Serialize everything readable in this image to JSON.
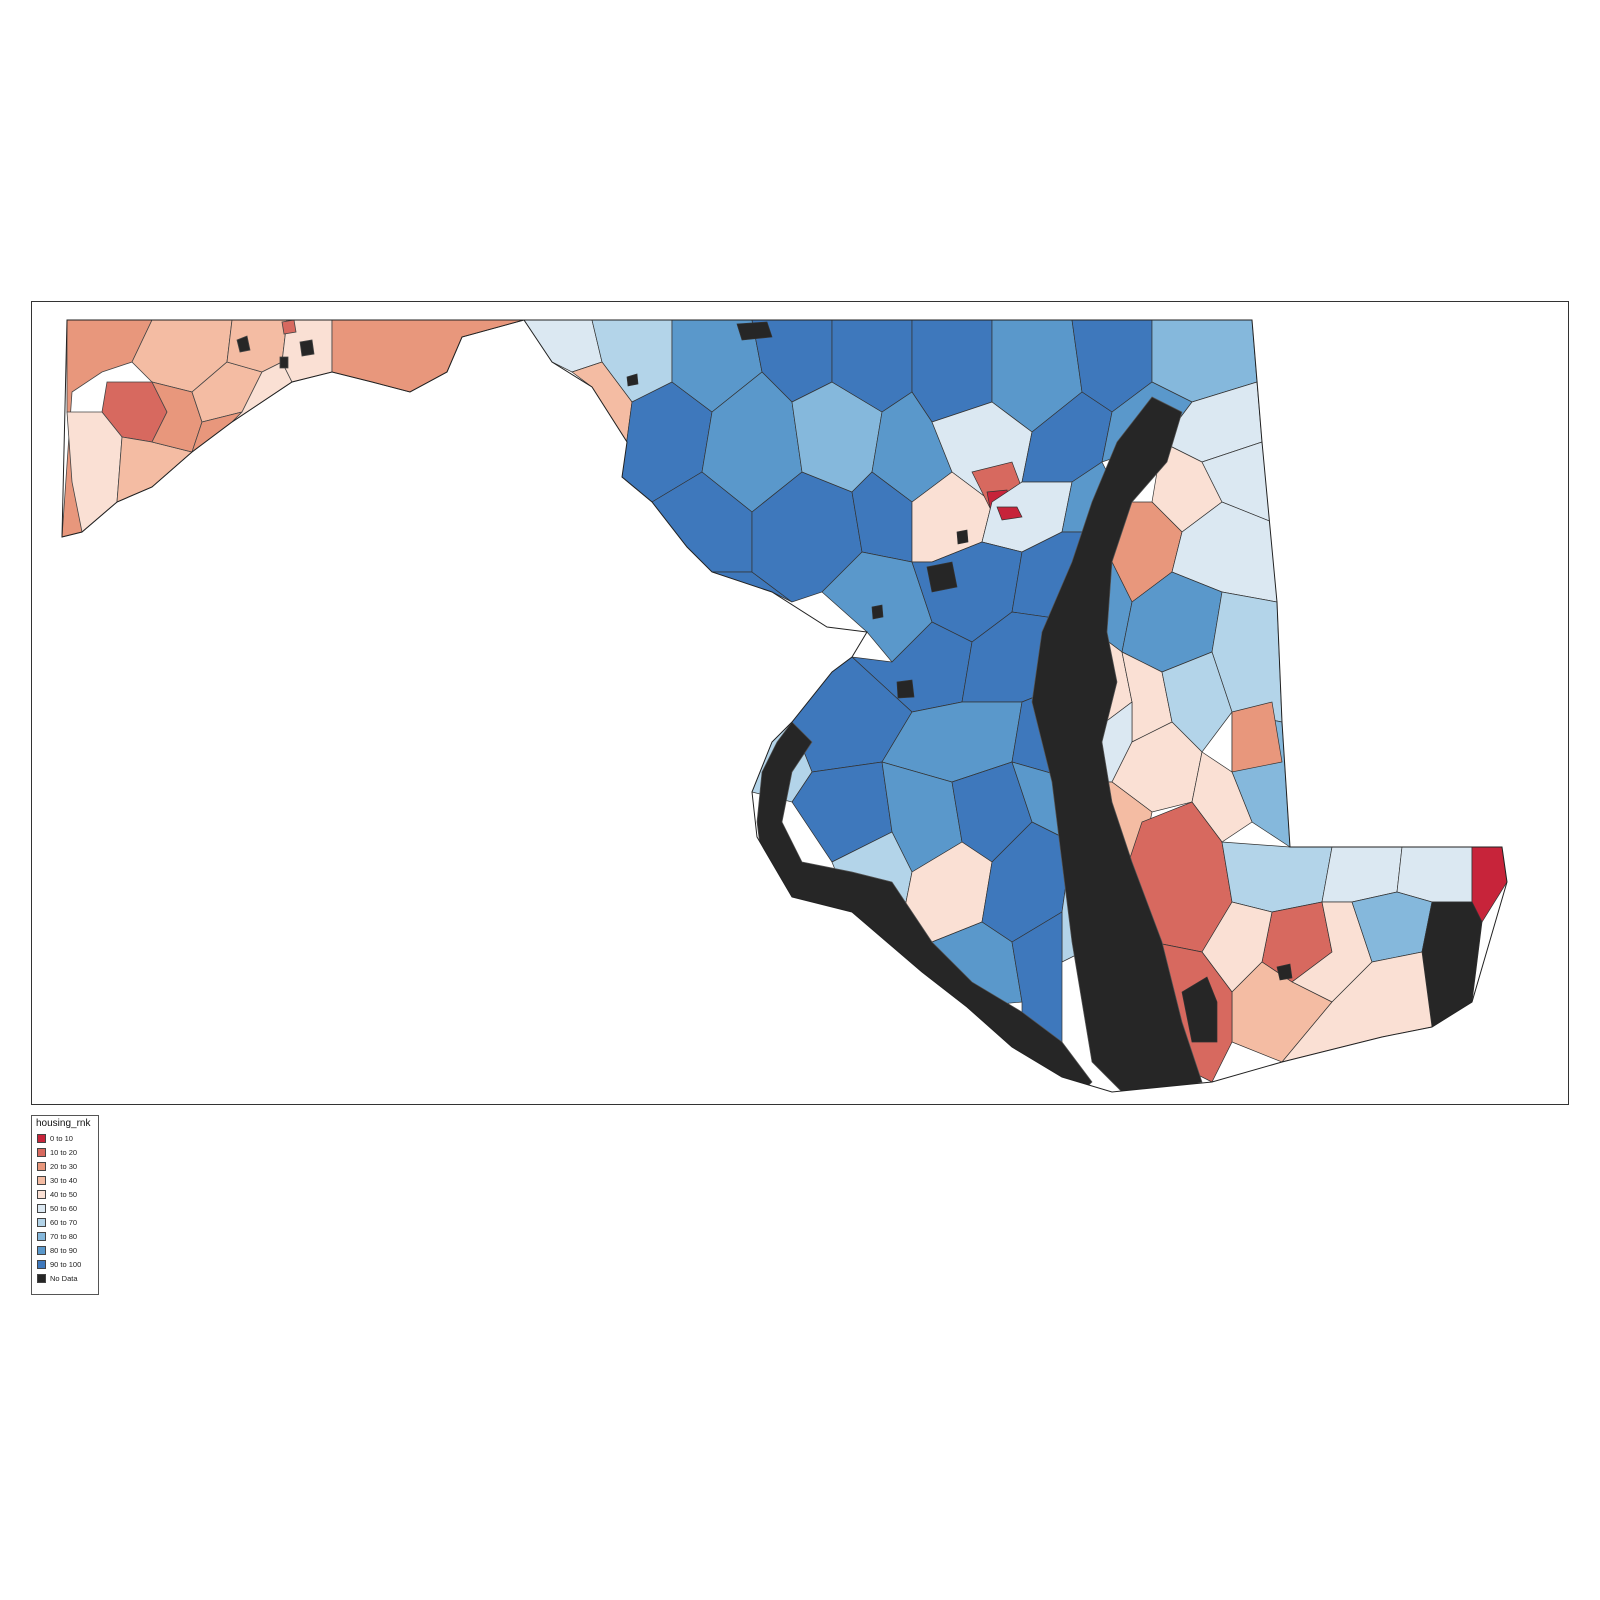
{
  "map": {
    "legend_title": "housing_rnk",
    "classes": [
      {
        "label": "0 to 10",
        "color": "#c7243a"
      },
      {
        "label": "10 to 20",
        "color": "#d7695f"
      },
      {
        "label": "20 to 30",
        "color": "#e8977c"
      },
      {
        "label": "30 to 40",
        "color": "#f4bca3"
      },
      {
        "label": "40 to 50",
        "color": "#fae0d4"
      },
      {
        "label": "50 to 60",
        "color": "#dbe8f2"
      },
      {
        "label": "60 to 70",
        "color": "#b3d4e9"
      },
      {
        "label": "70 to 80",
        "color": "#85b8dc"
      },
      {
        "label": "80 to 90",
        "color": "#5a98cb"
      },
      {
        "label": "90 to 100",
        "color": "#3e78bc"
      },
      {
        "label": "No Data",
        "color": "#262626"
      }
    ],
    "legend_position": "bottom-left-outside",
    "border_color": "#333333"
  }
}
